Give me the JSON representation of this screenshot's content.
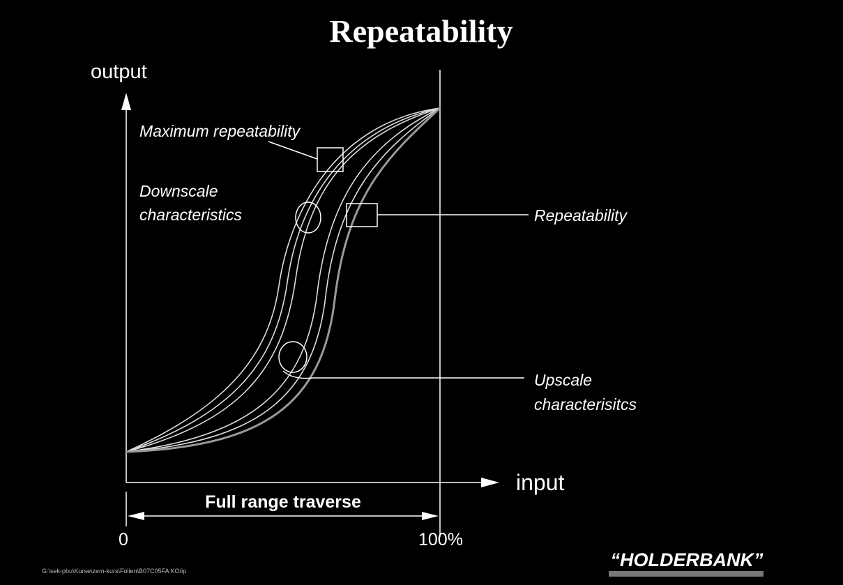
{
  "title": "Repeatability",
  "axes": {
    "y_label": "output",
    "x_label": "input",
    "x_start": "0",
    "x_end": "100%",
    "range_label": "Full range traverse"
  },
  "callouts": {
    "max_repeatability": "Maximum repeatability",
    "downscale": [
      "Downscale",
      "characteristics"
    ],
    "repeatability": "Repeatability",
    "upscale": [
      "Upscale",
      "characterisitcs"
    ]
  },
  "footer": {
    "path": "G:\\sek-pbu\\Kurse\\zem-kurs\\Folien\\B07C05FA KO/ip",
    "logo": "“HOLDERBANK”"
  }
}
